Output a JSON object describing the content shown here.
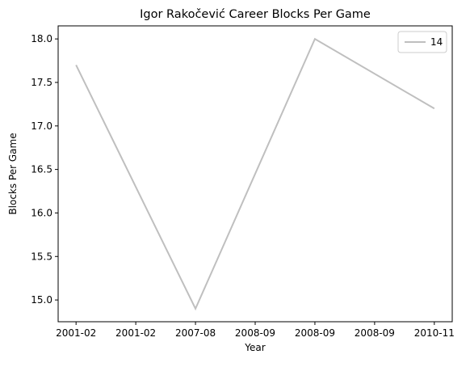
{
  "chart_data": {
    "type": "line",
    "title": "Igor Rakočević Career Blocks Per Game",
    "xlabel": "Year",
    "ylabel": "Blocks Per Game",
    "x_tick_labels": [
      "2001-02",
      "2001-02",
      "2007-08",
      "2008-09",
      "2008-09",
      "2008-09",
      "2010-11"
    ],
    "x_points": [
      0,
      2,
      4,
      6
    ],
    "series": [
      {
        "name": "14",
        "color": "#bfbfbf",
        "values": [
          17.7,
          14.9,
          18.0,
          17.2
        ]
      }
    ],
    "ylim": [
      14.75,
      18.15
    ],
    "xlim": [
      -0.3,
      6.3
    ],
    "y_ticks": [
      15.0,
      15.5,
      16.0,
      16.5,
      17.0,
      17.5,
      18.0
    ],
    "y_tick_labels": [
      "15.0",
      "15.5",
      "16.0",
      "16.5",
      "17.0",
      "17.5",
      "18.0"
    ],
    "legend": {
      "position": "top-right"
    },
    "grid": false
  }
}
